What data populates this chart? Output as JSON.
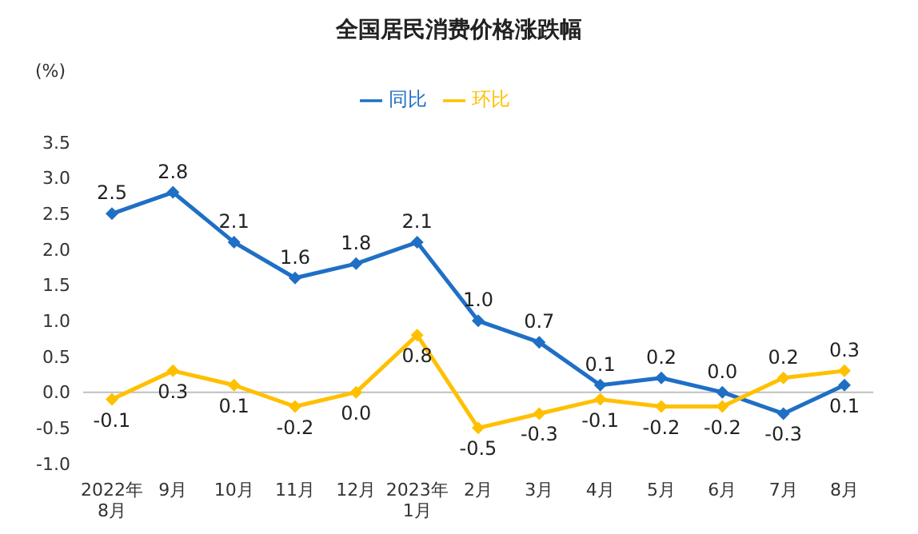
{
  "chart_data": {
    "type": "line",
    "title": "全国居民消费价格涨跌幅",
    "ylabel": "(%)",
    "categories": [
      "2022年\n8月",
      "9月",
      "10月",
      "11月",
      "12月",
      "2023年\n1月",
      "2月",
      "3月",
      "4月",
      "5月",
      "6月",
      "7月",
      "8月"
    ],
    "series": [
      {
        "name": "同比",
        "color": "#1f6fc5",
        "values": [
          2.5,
          2.8,
          2.1,
          1.6,
          1.8,
          2.1,
          1.0,
          0.7,
          0.1,
          0.2,
          0.0,
          -0.3,
          0.1
        ],
        "value_labels": [
          "2.5",
          "2.8",
          "2.1",
          "1.6",
          "1.8",
          "2.1",
          "1.0",
          "0.7",
          "0.1",
          "0.2",
          "0.0",
          "-0.3",
          "0.1"
        ]
      },
      {
        "name": "环比",
        "color": "#ffc000",
        "values": [
          -0.1,
          0.3,
          0.1,
          -0.2,
          0.0,
          0.8,
          -0.5,
          -0.3,
          -0.1,
          -0.2,
          -0.2,
          0.2,
          0.3
        ],
        "value_labels": [
          "-0.1",
          "0.3",
          "0.1",
          "-0.2",
          "0.0",
          "0.8",
          "-0.5",
          "-0.3",
          "-0.1",
          "-0.2",
          "-0.2",
          "0.2",
          "0.3"
        ]
      }
    ],
    "ylim": [
      -1,
      3.5
    ],
    "yticks": [
      {
        "value": -1,
        "label": "-1.0"
      },
      -0.5,
      {
        "value": 0,
        "label": "0.0"
      },
      0.5,
      {
        "value": 1,
        "label": "1.0"
      },
      1.5,
      {
        "value": 2,
        "label": "2.0"
      },
      2.5,
      {
        "value": 3,
        "label": "3.0"
      },
      3.5
    ],
    "ref_lines": [
      {
        "axis": "y",
        "value": 0,
        "color": "#bfbfbf"
      }
    ],
    "legend": "top",
    "marker": "diamond",
    "line_style": "solid",
    "grid": false
  }
}
